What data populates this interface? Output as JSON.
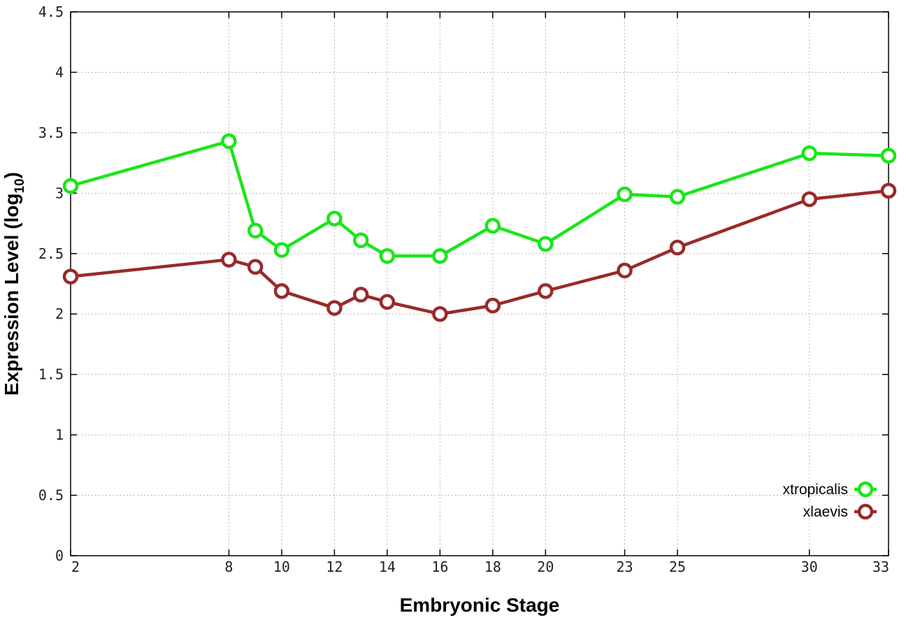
{
  "chart_data": {
    "type": "line",
    "xlabel": "Embryonic Stage",
    "ylabel_main": "Expression Level (log",
    "ylabel_sub": "10",
    "ylabel_close": ")",
    "x_ticks": [
      "2",
      "8",
      "10",
      "12",
      "14",
      "16",
      "18",
      "20",
      "23",
      "25",
      "30",
      "33"
    ],
    "x_values": [
      2,
      8,
      9,
      10,
      12,
      13,
      14,
      16,
      18,
      20,
      23,
      25,
      30,
      33
    ],
    "y_ticks": [
      "0",
      "0.5",
      "1",
      "1.5",
      "2",
      "2.5",
      "3",
      "3.5",
      "4",
      "4.5"
    ],
    "ylim": [
      0,
      4.5
    ],
    "xlim": [
      2,
      33
    ],
    "grid": true,
    "legend_position": "bottom-right",
    "series": [
      {
        "name": "xtropicalis",
        "color": "#19e619",
        "values": [
          3.06,
          3.43,
          2.69,
          2.53,
          2.79,
          2.61,
          2.48,
          2.48,
          2.73,
          2.58,
          2.99,
          2.97,
          3.33,
          3.31
        ]
      },
      {
        "name": "xlaevis",
        "color": "#992a2a",
        "values": [
          2.31,
          2.45,
          2.39,
          2.19,
          2.05,
          2.16,
          2.1,
          2.0,
          2.07,
          2.19,
          2.36,
          2.55,
          2.95,
          3.02
        ]
      }
    ]
  }
}
